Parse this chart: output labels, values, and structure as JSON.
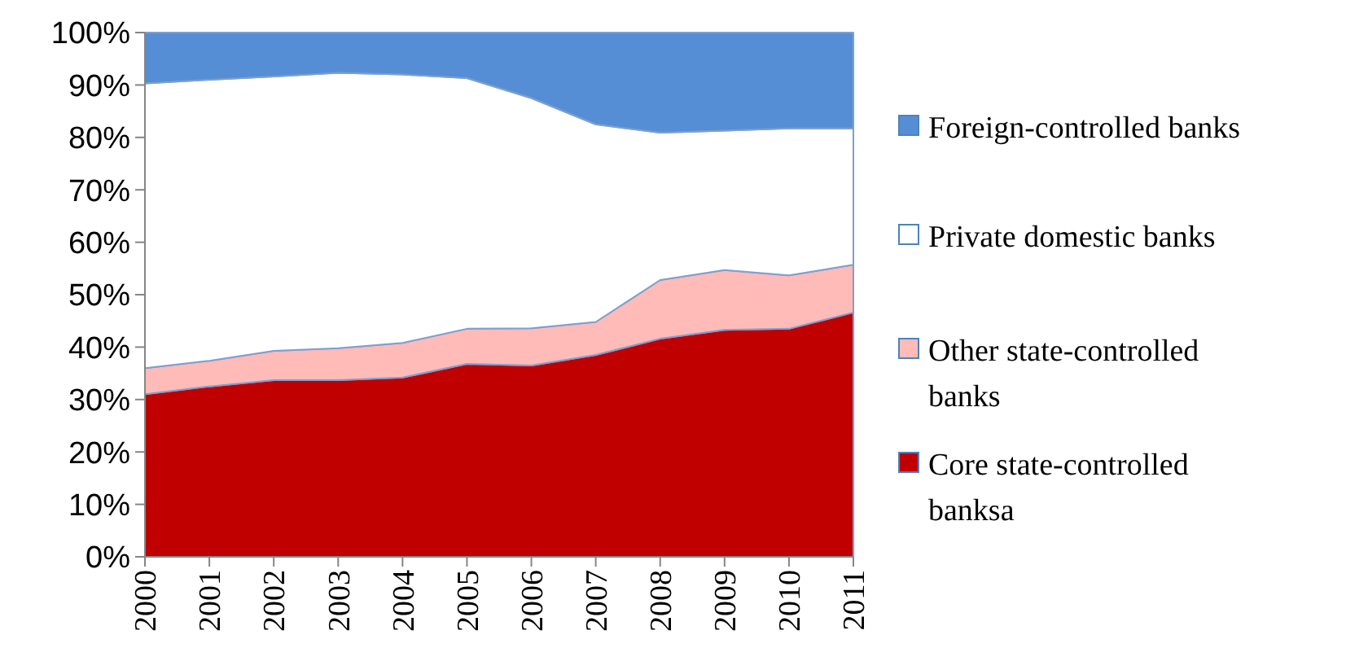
{
  "chart_data": {
    "type": "area",
    "stacked": true,
    "categories": [
      "2000",
      "2001",
      "2002",
      "2003",
      "2004",
      "2005",
      "2006",
      "2007",
      "2008",
      "2009",
      "2010",
      "2011"
    ],
    "series": [
      {
        "name": "Core state-controlled banksa",
        "color": "#c00000",
        "values": [
          31,
          32.5,
          33.7,
          33.7,
          34.2,
          36.8,
          36.5,
          38.5,
          41.6,
          43.3,
          43.5,
          46.6
        ]
      },
      {
        "name": "Other state-controlled banks",
        "color": "#ffbbb8",
        "values": [
          5.0,
          4.9,
          5.6,
          6.1,
          6.6,
          6.7,
          7.1,
          6.3,
          11.2,
          11.4,
          10.2,
          9.1
        ]
      },
      {
        "name": "Private domestic banks",
        "color": "#ffffff",
        "values": [
          54.3,
          53.6,
          52.3,
          52.5,
          51.2,
          47.8,
          43.9,
          37.7,
          28.1,
          26.6,
          28.0,
          26.0
        ]
      },
      {
        "name": "Foreign-controlled banks",
        "color": "#558ed5",
        "values": [
          9.7,
          9,
          8.4,
          7.7,
          8,
          8.7,
          12.5,
          17.5,
          19.1,
          18.7,
          18.3,
          18.3
        ]
      }
    ],
    "ylim": [
      0,
      100
    ],
    "yticks": [
      {
        "value": 0,
        "label": "0%"
      },
      {
        "value": 10,
        "label": "10%"
      },
      {
        "value": 20,
        "label": "20%"
      },
      {
        "value": 30,
        "label": "30%"
      },
      {
        "value": 40,
        "label": "40%"
      },
      {
        "value": 50,
        "label": "50%"
      },
      {
        "value": 60,
        "label": "60%"
      },
      {
        "value": 70,
        "label": "70%"
      },
      {
        "value": 80,
        "label": "80%"
      },
      {
        "value": 90,
        "label": "90%"
      },
      {
        "value": 100,
        "label": "100%"
      }
    ],
    "legend": "right"
  }
}
